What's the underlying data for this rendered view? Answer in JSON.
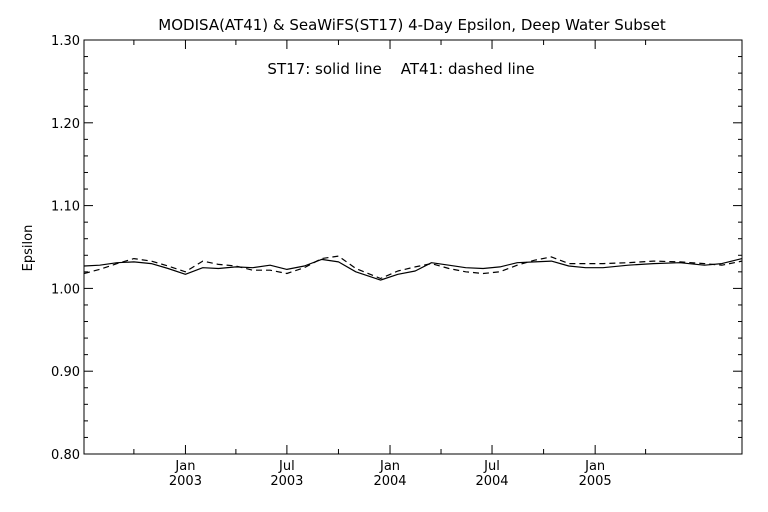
{
  "chart_data": {
    "type": "line",
    "title": "MODISA(AT41) & SeaWiFS(ST17) 4-Day Epsilon, Deep Water Subset",
    "annotation": "ST17: solid line    AT41: dashed line",
    "ylabel": "Epsilon",
    "xlabel": "",
    "xlim": [
      "2002-07-04",
      "2005-09-20"
    ],
    "ylim": [
      0.8,
      1.3
    ],
    "yticks": [
      {
        "value": 0.8,
        "label": "0.80"
      },
      {
        "value": 0.9,
        "label": "0.90"
      },
      {
        "value": 1.0,
        "label": "1.00"
      },
      {
        "value": 1.1,
        "label": "1.10"
      },
      {
        "value": 1.2,
        "label": "1.20"
      },
      {
        "value": 1.3,
        "label": "1.30"
      }
    ],
    "xticks": [
      {
        "date": "2003-01-01",
        "month": "Jan",
        "year": "2003"
      },
      {
        "date": "2003-07-01",
        "month": "Jul",
        "year": "2003"
      },
      {
        "date": "2004-01-01",
        "month": "Jan",
        "year": "2004"
      },
      {
        "date": "2004-07-01",
        "month": "Jul",
        "year": "2004"
      },
      {
        "date": "2005-01-01",
        "month": "Jan",
        "year": "2005"
      }
    ],
    "minor_x_ticks": [
      "2002-10-01",
      "2003-04-01",
      "2003-10-01",
      "2004-04-01",
      "2004-10-01",
      "2005-04-01"
    ],
    "series": [
      {
        "name": "ST17",
        "style": "solid",
        "color": "#000000",
        "points": [
          [
            "2002-07-04",
            1.027
          ],
          [
            "2002-08-01",
            1.028
          ],
          [
            "2002-09-01",
            1.031
          ],
          [
            "2002-10-01",
            1.032
          ],
          [
            "2002-11-01",
            1.03
          ],
          [
            "2002-12-01",
            1.024
          ],
          [
            "2003-01-01",
            1.017
          ],
          [
            "2003-02-01",
            1.025
          ],
          [
            "2003-03-01",
            1.024
          ],
          [
            "2003-04-01",
            1.026
          ],
          [
            "2003-05-01",
            1.025
          ],
          [
            "2003-06-01",
            1.028
          ],
          [
            "2003-07-01",
            1.023
          ],
          [
            "2003-08-01",
            1.027
          ],
          [
            "2003-09-01",
            1.035
          ],
          [
            "2003-10-01",
            1.032
          ],
          [
            "2003-11-01",
            1.02
          ],
          [
            "2003-12-15",
            1.01
          ],
          [
            "2004-01-15",
            1.017
          ],
          [
            "2004-02-15",
            1.021
          ],
          [
            "2004-03-15",
            1.031
          ],
          [
            "2004-04-15",
            1.028
          ],
          [
            "2004-05-15",
            1.025
          ],
          [
            "2004-06-15",
            1.024
          ],
          [
            "2004-07-15",
            1.026
          ],
          [
            "2004-08-15",
            1.031
          ],
          [
            "2004-09-15",
            1.032
          ],
          [
            "2004-10-15",
            1.033
          ],
          [
            "2004-11-15",
            1.027
          ],
          [
            "2004-12-15",
            1.025
          ],
          [
            "2005-01-15",
            1.025
          ],
          [
            "2005-03-01",
            1.028
          ],
          [
            "2005-04-15",
            1.03
          ],
          [
            "2005-06-01",
            1.031
          ],
          [
            "2005-07-15",
            1.028
          ],
          [
            "2005-08-15",
            1.03
          ],
          [
            "2005-09-20",
            1.036
          ]
        ]
      },
      {
        "name": "AT41",
        "style": "dashed",
        "color": "#000000",
        "points": [
          [
            "2002-07-04",
            1.018
          ],
          [
            "2002-08-01",
            1.023
          ],
          [
            "2002-09-01",
            1.03
          ],
          [
            "2002-10-01",
            1.036
          ],
          [
            "2002-11-01",
            1.033
          ],
          [
            "2002-12-01",
            1.027
          ],
          [
            "2003-01-01",
            1.02
          ],
          [
            "2003-02-01",
            1.033
          ],
          [
            "2003-03-01",
            1.029
          ],
          [
            "2003-04-01",
            1.027
          ],
          [
            "2003-05-01",
            1.022
          ],
          [
            "2003-06-01",
            1.022
          ],
          [
            "2003-07-01",
            1.018
          ],
          [
            "2003-08-01",
            1.025
          ],
          [
            "2003-09-01",
            1.036
          ],
          [
            "2003-10-01",
            1.039
          ],
          [
            "2003-11-01",
            1.024
          ],
          [
            "2003-12-15",
            1.012
          ],
          [
            "2004-01-15",
            1.021
          ],
          [
            "2004-02-15",
            1.026
          ],
          [
            "2004-03-15",
            1.03
          ],
          [
            "2004-04-15",
            1.024
          ],
          [
            "2004-05-15",
            1.02
          ],
          [
            "2004-06-15",
            1.018
          ],
          [
            "2004-07-15",
            1.02
          ],
          [
            "2004-08-15",
            1.028
          ],
          [
            "2004-09-15",
            1.034
          ],
          [
            "2004-10-15",
            1.038
          ],
          [
            "2004-11-15",
            1.03
          ],
          [
            "2004-12-15",
            1.03
          ],
          [
            "2005-01-15",
            1.03
          ],
          [
            "2005-03-01",
            1.031
          ],
          [
            "2005-04-15",
            1.033
          ],
          [
            "2005-06-01",
            1.032
          ],
          [
            "2005-07-15",
            1.03
          ],
          [
            "2005-08-15",
            1.028
          ],
          [
            "2005-09-20",
            1.033
          ]
        ]
      }
    ]
  }
}
